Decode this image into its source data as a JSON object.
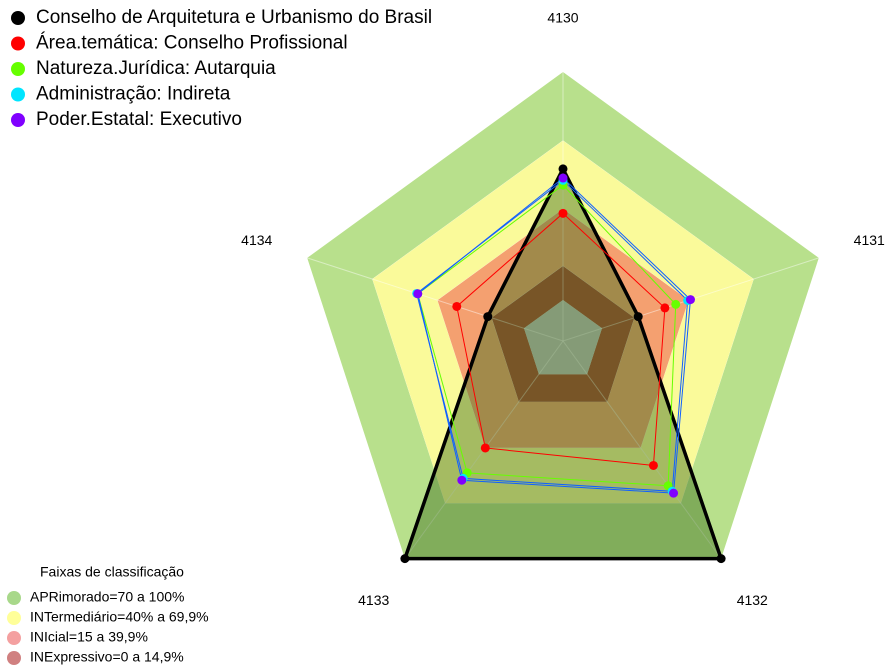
{
  "chart_data": {
    "type": "radar",
    "categories": [
      "4130",
      "4131",
      "4132",
      "4133",
      "4134"
    ],
    "rlim": [
      0,
      100
    ],
    "series": [
      {
        "name": "Conselho de Arquitetura e Urbanismo do Brasil",
        "color": "#000000",
        "values": [
          57.5,
          16.7,
          100,
          100,
          16.7
        ]
      },
      {
        "name": "Área.temática: Conselho Profissional",
        "color": "#ff0000",
        "values": [
          38,
          29,
          49.5,
          40,
          31
        ]
      },
      {
        "name": "Natureza.Jurídica: Autarquia",
        "color": "#66ff00",
        "values": [
          50.4,
          34,
          60.5,
          53.5,
          49
        ]
      },
      {
        "name": "Administração: Indireta",
        "color": "#00e5ff",
        "values": [
          52.5,
          39.5,
          63.5,
          56.5,
          49.5
        ]
      },
      {
        "name": "Poder.Estatal: Executivo",
        "color": "#8000ff",
        "values": [
          53.5,
          40.8,
          64.5,
          57.5,
          49
        ]
      }
    ],
    "bands_title": "Faixas de classificação",
    "bands": [
      {
        "label": "APRimorado=70 a 100%",
        "min": 70,
        "max": 100,
        "color": "#b8e08c",
        "legend_color": "#a8d88a"
      },
      {
        "label": "INTermediário=40% a 69,9%",
        "min": 40,
        "max": 69.9,
        "color": "#fafa9a",
        "legend_color": "#ffff99"
      },
      {
        "label": "INIcial=15 a 39,9%",
        "min": 15,
        "max": 39.9,
        "color": "#f4a070",
        "legend_color": "#f4a0a0"
      },
      {
        "label": "INExpressivo=0 a 14,9%",
        "min": 0,
        "max": 14.9,
        "color": "#a8412e",
        "legend_color": "#d08080"
      }
    ]
  }
}
